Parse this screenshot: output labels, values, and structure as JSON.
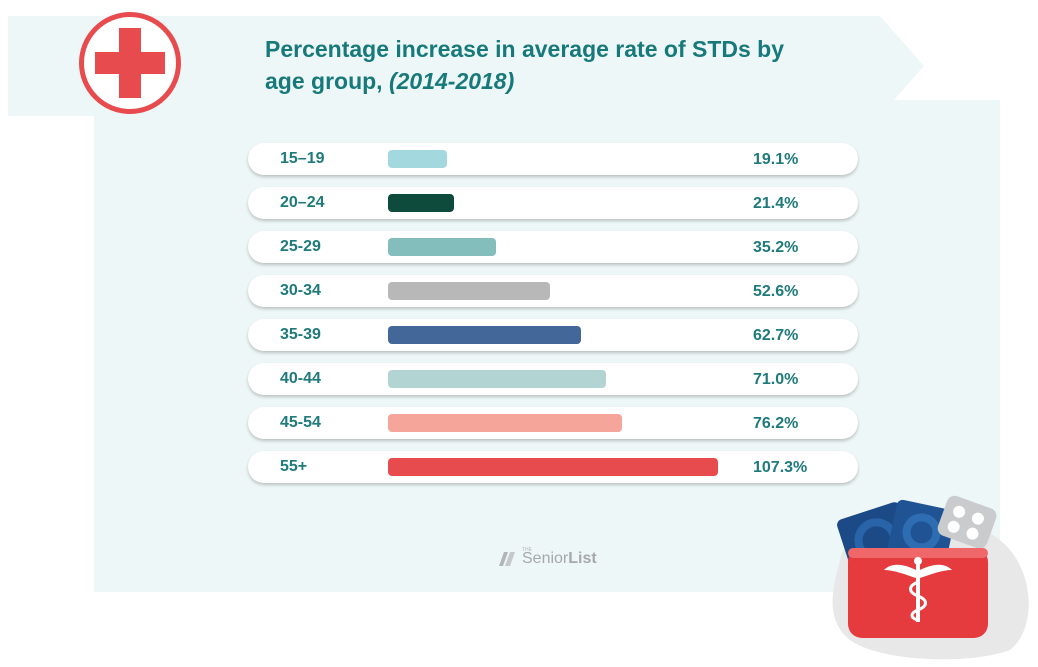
{
  "title": {
    "main": "Percentage increase in average rate of STDs by age group,",
    "period": "(2014-2018)"
  },
  "chart_data": {
    "type": "bar",
    "orientation": "horizontal",
    "title": "Percentage increase in average rate of STDs by age group, (2014-2018)",
    "unit": "%",
    "categories": [
      "15–19",
      "20–24",
      "25-29",
      "30-34",
      "35-39",
      "40-44",
      "45-54",
      "55+"
    ],
    "values": [
      19.1,
      21.4,
      35.2,
      52.6,
      62.7,
      71.0,
      76.2,
      107.3
    ],
    "value_labels": [
      "19.1%",
      "21.4%",
      "35.2%",
      "52.6%",
      "62.7%",
      "71.0%",
      "76.2%",
      "107.3%"
    ],
    "colors": [
      "#a3d8df",
      "#0e4b3d",
      "#83bebc",
      "#b8b8b8",
      "#44679a",
      "#b2d4d2",
      "#f6a59a",
      "#e84b4e"
    ],
    "grid": false,
    "legend": "none"
  },
  "branding": {
    "prefix": "THE",
    "name_light": "Senior",
    "name_bold": "List"
  },
  "colors": {
    "title": "#17797a",
    "panel": "#eef7f7",
    "accent_red": "#e53b3f"
  }
}
